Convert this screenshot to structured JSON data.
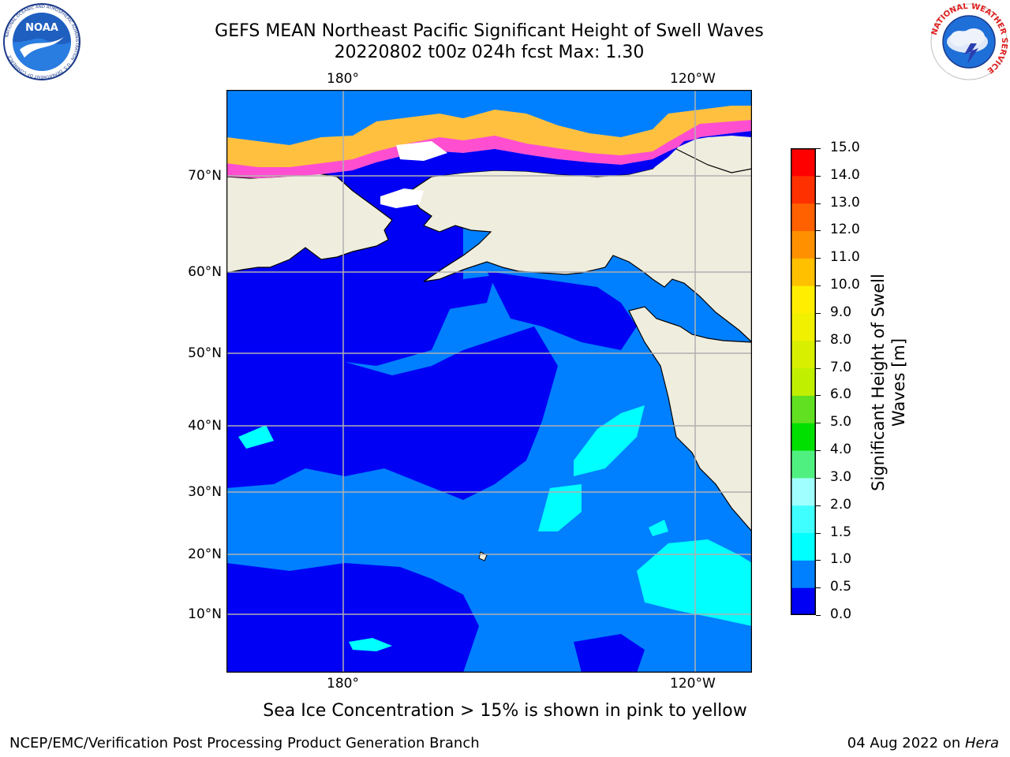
{
  "title": {
    "line1": "GEFS MEAN Northeast Pacific Significant Height of Swell Waves",
    "line2": "20220802 t00z 024h fcst   Max: 1.30"
  },
  "map": {
    "region": "Northeast Pacific",
    "lon_labels_top": [
      "180°",
      "120°W"
    ],
    "lon_labels_bottom": [
      "180°",
      "120°W"
    ],
    "lat_labels": [
      "70°N",
      "60°N",
      "50°N",
      "40°N",
      "30°N",
      "20°N",
      "10°N"
    ],
    "colors": {
      "land": "#efedde",
      "ocean_0_0_5": "#0000f5",
      "ocean_0_5_1_0": "#0080ff",
      "ocean_1_0_1_5": "#00ffff",
      "sea_ice_low": "#ff4fd0",
      "sea_ice_mid": "#ffa0a0",
      "sea_ice_high": "#ffc040",
      "grid": "#b0b0b0"
    }
  },
  "colorbar": {
    "title": "Significant Height of Swell Waves [m]",
    "title_line1": "Significant Height of Swell",
    "title_line2": "Waves [m]",
    "tick_labels": [
      "15.0",
      "14.0",
      "13.0",
      "12.0",
      "11.0",
      "10.0",
      "9.0",
      "8.0",
      "7.0",
      "6.0",
      "5.0",
      "4.0",
      "3.0",
      "2.0",
      "1.5",
      "1.0",
      "0.5",
      "0.0"
    ],
    "bins": [
      {
        "min": 0.0,
        "max": 0.5,
        "color": "#0000f5"
      },
      {
        "min": 0.5,
        "max": 1.0,
        "color": "#0080ff"
      },
      {
        "min": 1.0,
        "max": 1.5,
        "color": "#00ffff"
      },
      {
        "min": 1.5,
        "max": 2.0,
        "color": "#40ffff"
      },
      {
        "min": 2.0,
        "max": 3.0,
        "color": "#a0ffff"
      },
      {
        "min": 3.0,
        "max": 4.0,
        "color": "#50f080"
      },
      {
        "min": 4.0,
        "max": 5.0,
        "color": "#00e000"
      },
      {
        "min": 5.0,
        "max": 6.0,
        "color": "#60e020"
      },
      {
        "min": 6.0,
        "max": 7.0,
        "color": "#c0f000"
      },
      {
        "min": 7.0,
        "max": 8.0,
        "color": "#d8f000"
      },
      {
        "min": 8.0,
        "max": 9.0,
        "color": "#f0f000"
      },
      {
        "min": 9.0,
        "max": 10.0,
        "color": "#ffee00"
      },
      {
        "min": 10.0,
        "max": 11.0,
        "color": "#ffc000"
      },
      {
        "min": 11.0,
        "max": 12.0,
        "color": "#ff9000"
      },
      {
        "min": 12.0,
        "max": 13.0,
        "color": "#ff6000"
      },
      {
        "min": 13.0,
        "max": 14.0,
        "color": "#ff3000"
      },
      {
        "min": 14.0,
        "max": 15.0,
        "color": "#ff0000"
      }
    ]
  },
  "subtitle": "Sea Ice Concentration > 15% is shown in pink to yellow",
  "footer": {
    "left": "NCEP/EMC/Verification Post Processing Product Generation Branch",
    "right_date": "04 Aug 2022 on ",
    "right_host": "Hera"
  },
  "logos": {
    "noaa": {
      "name": "noaa-logo",
      "text": "NOAA",
      "ring_text": "NATIONAL OCEANIC AND ATMOSPHERIC ADMINISTRATION · U.S. DEPARTMENT OF COMMERCE"
    },
    "nws": {
      "name": "nws-logo",
      "ring_text": "NATIONAL WEATHER SERVICE"
    }
  }
}
